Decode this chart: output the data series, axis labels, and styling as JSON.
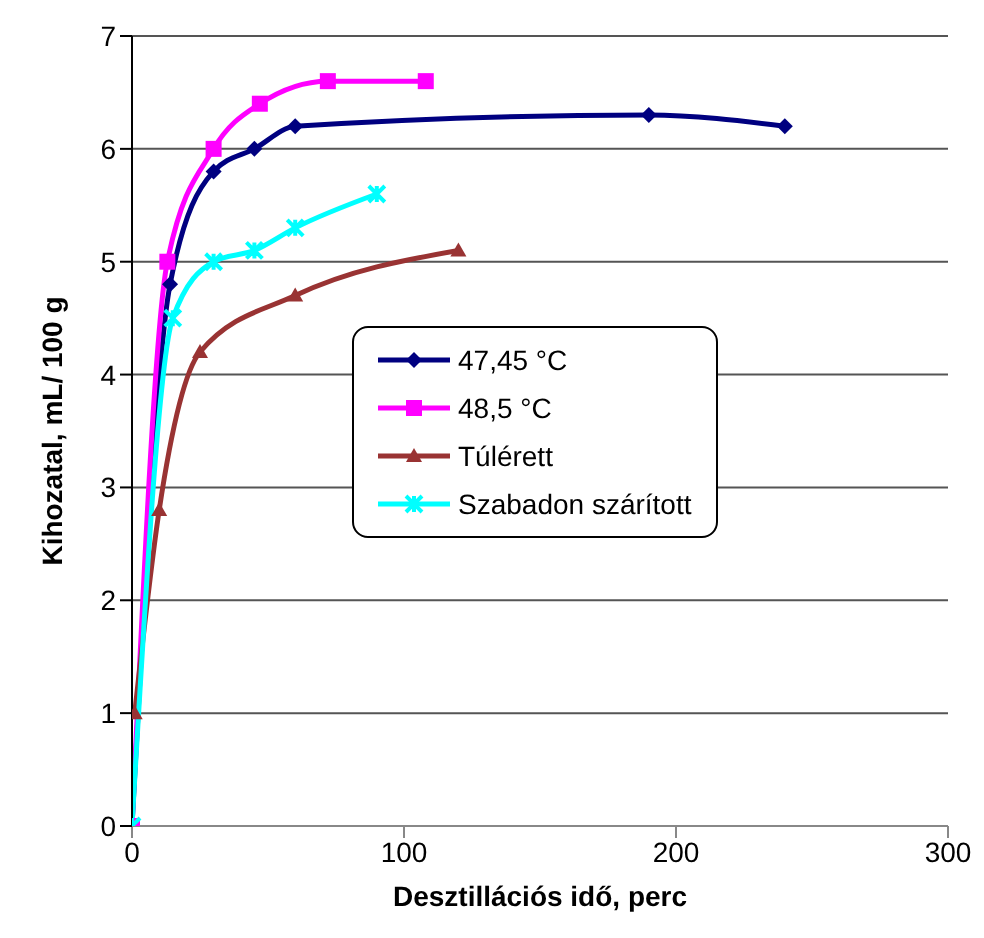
{
  "chart_data": {
    "type": "line",
    "xlabel": "Desztillációs idő, perc",
    "ylabel": "Kihozatal, mL/ 100 g",
    "xlim": [
      0,
      300
    ],
    "xticks": [
      0,
      100,
      200,
      300
    ],
    "ylim": [
      0,
      7
    ],
    "yticks": [
      0,
      1,
      2,
      3,
      4,
      5,
      6,
      7
    ],
    "grid": "y",
    "legend": "right",
    "series": [
      {
        "name": "47,45 °C",
        "color": "#000080",
        "marker": "diamond",
        "x": [
          0,
          14,
          30,
          45,
          60,
          190,
          240
        ],
        "values": [
          0,
          4.8,
          5.8,
          6.0,
          6.2,
          6.3,
          6.2
        ]
      },
      {
        "name": "48,5 °C",
        "color": "#ff00ff",
        "marker": "square",
        "x": [
          0,
          13,
          30,
          47,
          72,
          108
        ],
        "values": [
          0,
          5.0,
          6.0,
          6.4,
          6.6,
          6.6
        ]
      },
      {
        "name": "Túlérett",
        "color": "#993333",
        "marker": "triangle",
        "x": [
          1,
          10,
          25,
          60,
          120
        ],
        "values": [
          1,
          2.8,
          4.2,
          4.7,
          5.1
        ]
      },
      {
        "name": "Szabadon szárított",
        "color": "#00ffff",
        "marker": "cross",
        "x": [
          0,
          15,
          30,
          45,
          60,
          90
        ],
        "values": [
          0,
          4.5,
          5.0,
          5.1,
          5.3,
          5.6
        ]
      }
    ]
  }
}
